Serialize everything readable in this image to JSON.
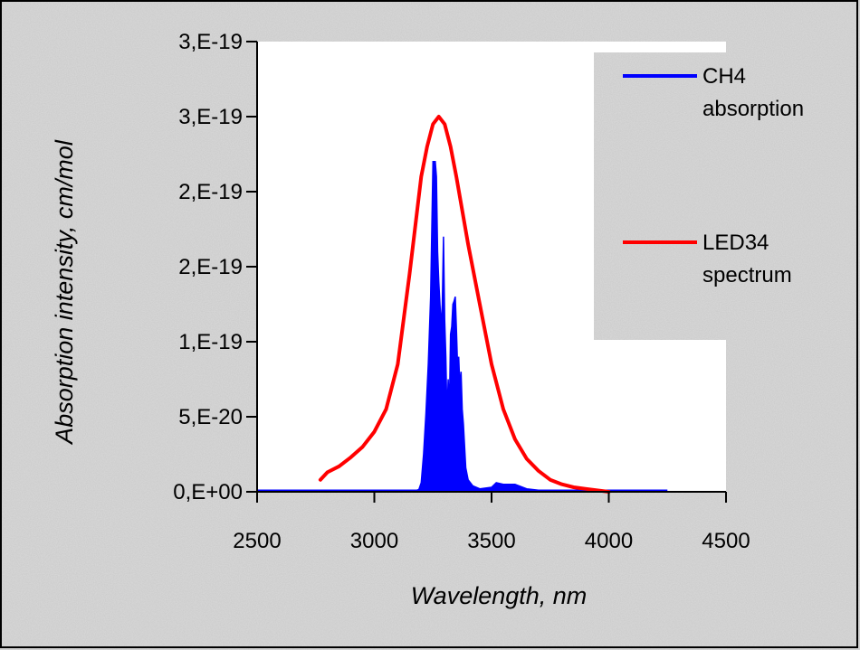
{
  "colors": {
    "background": "#d6d6d6",
    "plot_area": "#ffffff",
    "border": "#000000",
    "ch4": "#0000ff",
    "led": "#ff0000"
  },
  "chart_data": {
    "type": "line",
    "title": "",
    "xlabel": "Wavelength, nm",
    "ylabel": "Absorption intensity, cm/mol",
    "xlim": [
      2500,
      4500
    ],
    "ylim": [
      0,
      3e-19
    ],
    "x_ticks": [
      2500,
      3000,
      3500,
      4000,
      4500
    ],
    "x_tick_labels": [
      "2500",
      "3000",
      "3500",
      "4000",
      "4500"
    ],
    "y_ticks": [
      0,
      5e-20,
      1e-19,
      1.5e-19,
      2e-19,
      2.5e-19,
      3e-19
    ],
    "y_tick_labels": [
      "0,E+00",
      "5,E-20",
      "1,E-19",
      "2,E-19",
      "2,E-19",
      "3,E-19",
      "3,E-19"
    ],
    "grid": false,
    "legend_position": "right",
    "series": [
      {
        "name": "CH4 absorption",
        "legend_lines": [
          "CH4",
          "absorption"
        ],
        "color": "#0000ff",
        "style": "filled-spectrum",
        "x": [
          2500,
          3100,
          3150,
          3170,
          3190,
          3200,
          3210,
          3220,
          3230,
          3240,
          3250,
          3255,
          3260,
          3265,
          3270,
          3275,
          3280,
          3285,
          3290,
          3295,
          3300,
          3305,
          3310,
          3315,
          3320,
          3325,
          3330,
          3335,
          3340,
          3345,
          3350,
          3355,
          3360,
          3365,
          3370,
          3375,
          3380,
          3390,
          3400,
          3420,
          3450,
          3500,
          3520,
          3550,
          3600,
          3650,
          3700,
          3800,
          4000,
          4250
        ],
        "y": [
          0,
          0,
          1e-22,
          4e-22,
          1.5e-21,
          6e-21,
          2.5e-20,
          5.2e-20,
          8.5e-20,
          1.3e-19,
          2.2e-19,
          2.2e-19,
          2.2e-19,
          2.1e-19,
          1.6e-19,
          1.4e-19,
          1.25e-19,
          1.1e-19,
          1.25e-19,
          1.7e-19,
          1.15e-19,
          9e-20,
          5e-20,
          7.5e-20,
          5.5e-20,
          1.05e-19,
          1.1e-19,
          1.25e-19,
          1.27e-19,
          1.3e-19,
          1.1e-19,
          8.5e-20,
          9e-20,
          7e-20,
          8e-20,
          5.5e-20,
          4.5e-20,
          1.6e-20,
          8e-21,
          4e-21,
          2e-21,
          3e-21,
          6e-21,
          5e-21,
          5e-21,
          2e-21,
          1e-21,
          1e-22,
          0,
          0
        ]
      },
      {
        "name": "LED34 spectrum",
        "legend_lines": [
          "LED34",
          "spectrum"
        ],
        "color": "#ff0000",
        "style": "line",
        "x": [
          2770,
          2800,
          2850,
          2900,
          2950,
          3000,
          3050,
          3100,
          3150,
          3200,
          3225,
          3250,
          3275,
          3300,
          3325,
          3350,
          3400,
          3450,
          3500,
          3550,
          3600,
          3650,
          3700,
          3750,
          3800,
          3850,
          3900,
          3950,
          4000
        ],
        "y": [
          8e-21,
          1.3e-20,
          1.7e-20,
          2.3e-20,
          3e-20,
          4e-20,
          5.5e-20,
          8.5e-20,
          1.45e-19,
          2.1e-19,
          2.3e-19,
          2.45e-19,
          2.5e-19,
          2.45e-19,
          2.3e-19,
          2.1e-19,
          1.65e-19,
          1.25e-19,
          8.5e-20,
          5.5e-20,
          3.5e-20,
          2.2e-20,
          1.4e-20,
          8e-21,
          5e-21,
          3e-21,
          2e-21,
          1e-21,
          0
        ]
      }
    ]
  }
}
